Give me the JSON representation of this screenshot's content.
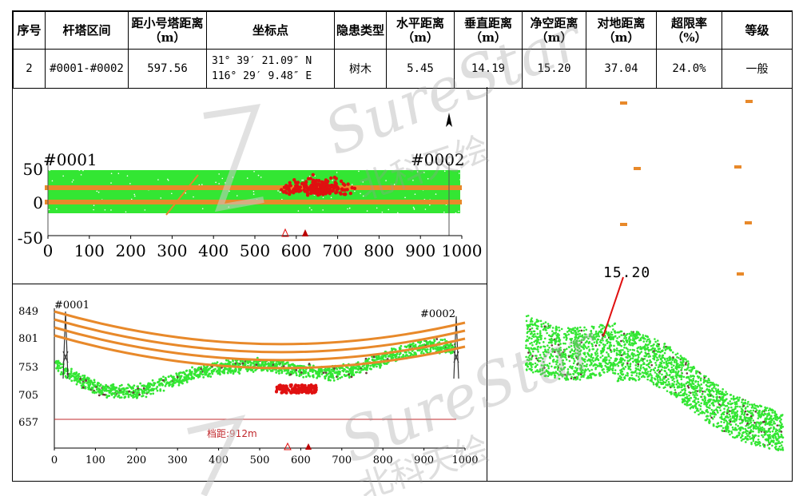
{
  "table": {
    "headers": [
      "序号",
      "杆塔区间",
      "距小号塔距离（m）",
      "坐标点",
      "隐患类型",
      "水平距离（m）",
      "垂直距离（m）",
      "净空距离（m）",
      "对地距离（m）",
      "超限率（%）",
      "等级"
    ],
    "row": {
      "seq": "2",
      "span": "#0001-#0002",
      "dist_small_tower": "597.56",
      "coord_lat": "31° 39′ 21.09″ N",
      "coord_lon": "116° 29′ 9.48″ E",
      "hazard_type": "树木",
      "horizontal_dist": "5.45",
      "vertical_dist": "14.19",
      "clearance_dist": "15.20",
      "ground_dist": "37.04",
      "exceed_rate": "24.0%",
      "level": "一般"
    }
  },
  "plan_view": {
    "tower_start": "#0001",
    "tower_end": "#0002",
    "north_arrow": "north-arrow-icon",
    "y_ticks": [
      "50",
      "0",
      "-50"
    ],
    "x_ticks": [
      "0",
      "100",
      "200",
      "300",
      "400",
      "500",
      "600",
      "700",
      "800",
      "900",
      "1000"
    ]
  },
  "profile_view": {
    "tower_start": "#0001",
    "tower_end": "#0002",
    "y_ticks": [
      "849",
      "801",
      "753",
      "705",
      "657"
    ],
    "x_ticks": [
      "0",
      "100",
      "200",
      "300",
      "400",
      "500",
      "600",
      "700",
      "800",
      "900",
      "1000"
    ],
    "span_label": "档距:912m"
  },
  "view_3d": {
    "clearance_label": "15.20"
  },
  "watermark": {
    "brand": "SureStar",
    "cn": "北科天绘"
  },
  "colors": {
    "vegetation": "#33e633",
    "conductor": "#e8892a",
    "hazard": "#e01010",
    "ground_line": "#c0282c"
  }
}
